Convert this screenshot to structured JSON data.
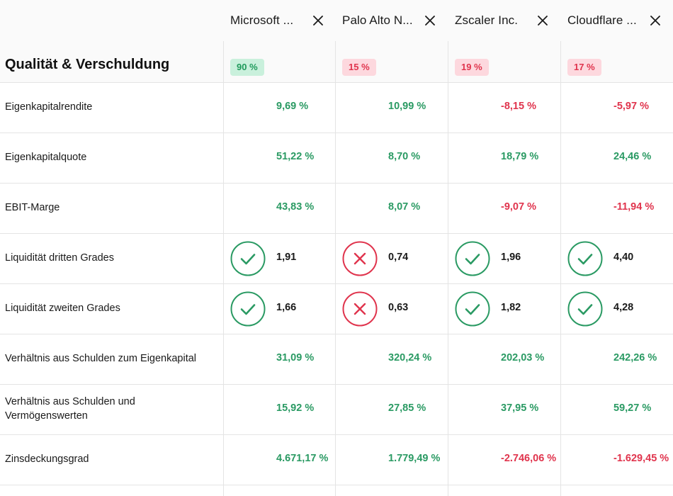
{
  "companies": [
    {
      "name": "Microsoft ...",
      "score": "90 %",
      "score_status": "good"
    },
    {
      "name": "Palo Alto N...",
      "score": "15 %",
      "score_status": "bad"
    },
    {
      "name": "Zscaler Inc.",
      "score": "19 %",
      "score_status": "bad"
    },
    {
      "name": "Cloudflare ...",
      "score": "17 %",
      "score_status": "bad"
    }
  ],
  "section": {
    "title": "Qualität & Verschuldung"
  },
  "icons": {
    "close": "close-icon",
    "pass": "check-circle-icon",
    "fail": "x-circle-icon"
  },
  "colors": {
    "positive": "#2a9a63",
    "negative": "#e0344d",
    "badge_good_bg": "#c9f0dc",
    "badge_bad_bg": "#fdd8de"
  },
  "rows": [
    {
      "label": "Eigenkapitalrendite",
      "values": [
        {
          "text": "9,69 %",
          "tone": "pos"
        },
        {
          "text": "10,99 %",
          "tone": "pos"
        },
        {
          "text": "-8,15 %",
          "tone": "neg"
        },
        {
          "text": "-5,97 %",
          "tone": "neg"
        }
      ]
    },
    {
      "label": "Eigenkapitalquote",
      "values": [
        {
          "text": "51,22 %",
          "tone": "pos"
        },
        {
          "text": "8,70 %",
          "tone": "pos"
        },
        {
          "text": "18,79 %",
          "tone": "pos"
        },
        {
          "text": "24,46 %",
          "tone": "pos"
        }
      ]
    },
    {
      "label": "EBIT-Marge",
      "values": [
        {
          "text": "43,83 %",
          "tone": "pos"
        },
        {
          "text": "8,07 %",
          "tone": "pos"
        },
        {
          "text": "-9,07 %",
          "tone": "neg"
        },
        {
          "text": "-11,94 %",
          "tone": "neg"
        }
      ]
    },
    {
      "label": "Liquidität dritten Grades",
      "values": [
        {
          "text": "1,91",
          "tone": "neu",
          "status": "pass"
        },
        {
          "text": "0,74",
          "tone": "neu",
          "status": "fail"
        },
        {
          "text": "1,96",
          "tone": "neu",
          "status": "pass"
        },
        {
          "text": "4,40",
          "tone": "neu",
          "status": "pass"
        }
      ]
    },
    {
      "label": "Liquidität zweiten Grades",
      "values": [
        {
          "text": "1,66",
          "tone": "neu",
          "status": "pass"
        },
        {
          "text": "0,63",
          "tone": "neu",
          "status": "fail"
        },
        {
          "text": "1,82",
          "tone": "neu",
          "status": "pass"
        },
        {
          "text": "4,28",
          "tone": "neu",
          "status": "pass"
        }
      ]
    },
    {
      "label": "Verhältnis aus Schulden zum Eigenkapital",
      "values": [
        {
          "text": "31,09 %",
          "tone": "pos"
        },
        {
          "text": "320,24 %",
          "tone": "pos"
        },
        {
          "text": "202,03 %",
          "tone": "pos"
        },
        {
          "text": "242,26 %",
          "tone": "pos"
        }
      ]
    },
    {
      "label": "Verhältnis aus Schulden und Vermögenswerten",
      "values": [
        {
          "text": "15,92 %",
          "tone": "pos"
        },
        {
          "text": "27,85 %",
          "tone": "pos"
        },
        {
          "text": "37,95 %",
          "tone": "pos"
        },
        {
          "text": "59,27 %",
          "tone": "pos"
        }
      ]
    },
    {
      "label": "Zinsdeckungsgrad",
      "values": [
        {
          "text": "4.671,17 %",
          "tone": "pos"
        },
        {
          "text": "1.779,49 %",
          "tone": "pos"
        },
        {
          "text": "-2.746,06 %",
          "tone": "neg"
        },
        {
          "text": "-1.629,45 %",
          "tone": "neg"
        }
      ]
    }
  ]
}
